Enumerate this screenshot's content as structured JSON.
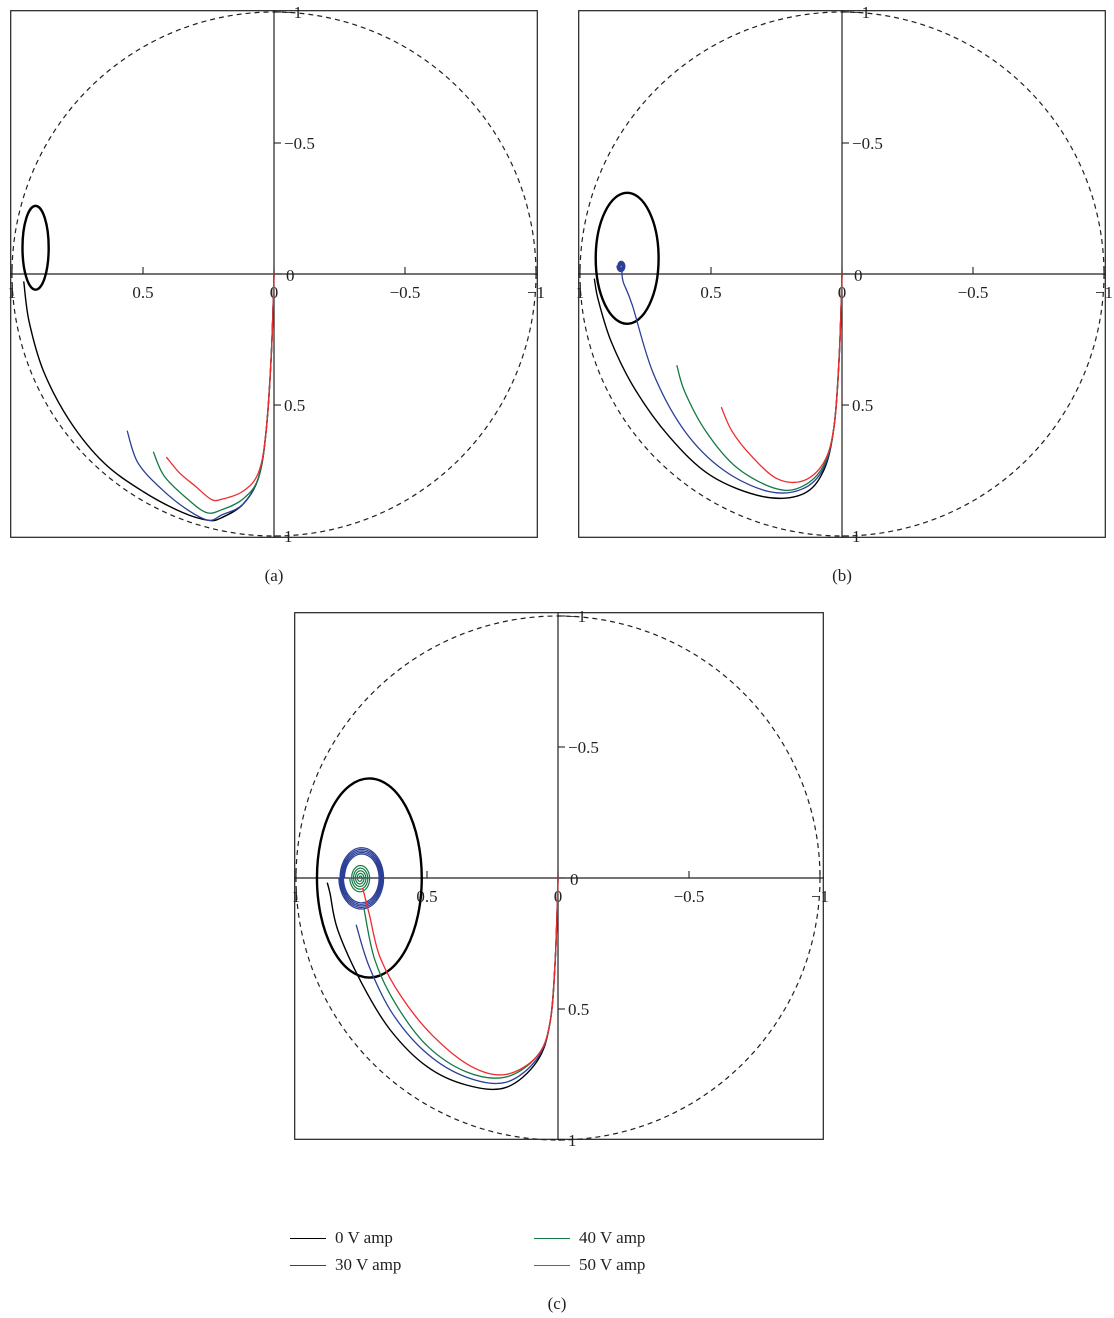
{
  "chart_data": [
    {
      "type": "line",
      "panel_label": "(a)",
      "x_axis": {
        "range": [
          1,
          -1
        ],
        "tick_values": [
          1,
          0.5,
          0,
          -0.5,
          -1
        ],
        "tick_labels": [
          "1",
          "0.5",
          "0",
          "−0.5",
          "−1"
        ]
      },
      "y_axis": {
        "range": [
          -1,
          1
        ],
        "tick_values": [
          -1,
          -0.5,
          0,
          0.5,
          1
        ],
        "tick_labels": [
          "−1",
          "−0.5",
          "0",
          "0.5",
          "1"
        ]
      },
      "unit_circle": {
        "center": [
          0,
          0
        ],
        "radius": 1,
        "style": "dashed"
      },
      "grid": false,
      "series": [
        {
          "name": "0 V amp",
          "color": "#000000",
          "width": 1.4,
          "points": [
            [
              0,
              0
            ],
            [
              0.01,
              0.3
            ],
            [
              0.03,
              0.6
            ],
            [
              0.06,
              0.78
            ],
            [
              0.12,
              0.88
            ],
            [
              0.2,
              0.93
            ],
            [
              0.25,
              0.94
            ],
            [
              0.35,
              0.91
            ],
            [
              0.5,
              0.83
            ],
            [
              0.65,
              0.72
            ],
            [
              0.78,
              0.56
            ],
            [
              0.88,
              0.37
            ],
            [
              0.935,
              0.18
            ],
            [
              0.955,
              0.03
            ]
          ]
        },
        {
          "name": "0 V amp limit cycle",
          "color": "#000000",
          "width": 2.4,
          "ellipse": {
            "cx": 0.91,
            "cy": -0.1,
            "rx": 0.05,
            "ry": 0.16
          }
        },
        {
          "name": "30 V amp",
          "color": "#2b3f96",
          "width": 1.3,
          "points": [
            [
              0,
              0
            ],
            [
              0.01,
              0.3
            ],
            [
              0.03,
              0.6
            ],
            [
              0.06,
              0.78
            ],
            [
              0.12,
              0.88
            ],
            [
              0.2,
              0.92
            ],
            [
              0.25,
              0.94
            ],
            [
              0.33,
              0.9
            ],
            [
              0.43,
              0.82
            ],
            [
              0.52,
              0.72
            ],
            [
              0.56,
              0.6
            ]
          ]
        },
        {
          "name": "40 V amp",
          "color": "#157a46",
          "width": 1.3,
          "points": [
            [
              0,
              0
            ],
            [
              0.01,
              0.3
            ],
            [
              0.03,
              0.6
            ],
            [
              0.06,
              0.78
            ],
            [
              0.12,
              0.86
            ],
            [
              0.2,
              0.9
            ],
            [
              0.26,
              0.91
            ],
            [
              0.34,
              0.85
            ],
            [
              0.42,
              0.77
            ],
            [
              0.46,
              0.68
            ]
          ]
        },
        {
          "name": "50 V amp",
          "color": "#ef2b2d",
          "width": 1.3,
          "points": [
            [
              0,
              0
            ],
            [
              0.01,
              0.3
            ],
            [
              0.03,
              0.6
            ],
            [
              0.06,
              0.76
            ],
            [
              0.12,
              0.83
            ],
            [
              0.2,
              0.86
            ],
            [
              0.24,
              0.86
            ],
            [
              0.3,
              0.81
            ],
            [
              0.36,
              0.76
            ],
            [
              0.41,
              0.7
            ]
          ]
        }
      ]
    },
    {
      "type": "line",
      "panel_label": "(b)",
      "x_axis": {
        "range": [
          1,
          -1
        ],
        "tick_values": [
          1,
          0.5,
          0,
          -0.5,
          -1
        ],
        "tick_labels": [
          "1",
          "0.5",
          "0",
          "−0.5",
          "−1"
        ]
      },
      "y_axis": {
        "range": [
          -1,
          1
        ],
        "tick_values": [
          -1,
          -0.5,
          0,
          0.5,
          1
        ],
        "tick_labels": [
          "−1",
          "−0.5",
          "0",
          "0.5",
          "1"
        ]
      },
      "unit_circle": {
        "center": [
          0,
          0
        ],
        "radius": 1,
        "style": "dashed"
      },
      "grid": false,
      "series": [
        {
          "name": "0 V amp",
          "color": "#000000",
          "width": 1.4,
          "points": [
            [
              0,
              0
            ],
            [
              0.01,
              0.3
            ],
            [
              0.03,
              0.58
            ],
            [
              0.07,
              0.75
            ],
            [
              0.15,
              0.84
            ],
            [
              0.3,
              0.85
            ],
            [
              0.5,
              0.77
            ],
            [
              0.66,
              0.62
            ],
            [
              0.79,
              0.44
            ],
            [
              0.88,
              0.26
            ],
            [
              0.93,
              0.1
            ],
            [
              0.945,
              0.02
            ]
          ]
        },
        {
          "name": "0 V amp limit cycle",
          "color": "#000000",
          "width": 2.4,
          "ellipse": {
            "cx": 0.82,
            "cy": -0.06,
            "rx": 0.12,
            "ry": 0.25
          }
        },
        {
          "name": "30 V amp",
          "color": "#2b3f96",
          "width": 1.3,
          "points": [
            [
              0,
              0
            ],
            [
              0.01,
              0.3
            ],
            [
              0.03,
              0.58
            ],
            [
              0.07,
              0.74
            ],
            [
              0.15,
              0.82
            ],
            [
              0.28,
              0.83
            ],
            [
              0.45,
              0.75
            ],
            [
              0.6,
              0.6
            ],
            [
              0.72,
              0.38
            ],
            [
              0.8,
              0.12
            ],
            [
              0.835,
              0.03
            ],
            [
              0.84,
              -0.01
            ]
          ]
        },
        {
          "name": "30 V amp spiral",
          "color": "#2b3f96",
          "width": 1.2,
          "spiral": {
            "cx": 0.843,
            "cy": -0.03,
            "r_start": 0.022,
            "r_end": 0.003,
            "turns": 4
          }
        },
        {
          "name": "40 V amp",
          "color": "#157a46",
          "width": 1.3,
          "points": [
            [
              0,
              0
            ],
            [
              0.01,
              0.3
            ],
            [
              0.03,
              0.58
            ],
            [
              0.07,
              0.73
            ],
            [
              0.15,
              0.81
            ],
            [
              0.25,
              0.82
            ],
            [
              0.4,
              0.74
            ],
            [
              0.52,
              0.6
            ],
            [
              0.6,
              0.45
            ],
            [
              0.63,
              0.35
            ]
          ]
        },
        {
          "name": "50 V amp",
          "color": "#ef2b2d",
          "width": 1.3,
          "points": [
            [
              0,
              0
            ],
            [
              0.01,
              0.3
            ],
            [
              0.03,
              0.58
            ],
            [
              0.07,
              0.72
            ],
            [
              0.15,
              0.79
            ],
            [
              0.25,
              0.78
            ],
            [
              0.35,
              0.69
            ],
            [
              0.42,
              0.6
            ],
            [
              0.46,
              0.51
            ]
          ]
        }
      ]
    },
    {
      "type": "line",
      "panel_label": "",
      "x_axis": {
        "range": [
          1,
          -1
        ],
        "tick_values": [
          1,
          0.5,
          0,
          -0.5,
          -1
        ],
        "tick_labels": [
          "1",
          "0.5",
          "0",
          "−0.5",
          "−1"
        ]
      },
      "y_axis": {
        "range": [
          -1,
          1
        ],
        "tick_values": [
          -1,
          -0.5,
          0,
          0.5,
          1
        ],
        "tick_labels": [
          "−1",
          "−0.5",
          "0",
          "0.5",
          "1"
        ]
      },
      "unit_circle": {
        "center": [
          0,
          0
        ],
        "radius": 1,
        "style": "dashed"
      },
      "grid": false,
      "series": [
        {
          "name": "0 V amp",
          "color": "#000000",
          "width": 1.4,
          "points": [
            [
              0,
              0
            ],
            [
              0.01,
              0.3
            ],
            [
              0.03,
              0.55
            ],
            [
              0.08,
              0.7
            ],
            [
              0.2,
              0.8
            ],
            [
              0.35,
              0.79
            ],
            [
              0.5,
              0.72
            ],
            [
              0.64,
              0.58
            ],
            [
              0.75,
              0.4
            ],
            [
              0.84,
              0.2
            ],
            [
              0.87,
              0.06
            ],
            [
              0.88,
              0.02
            ]
          ]
        },
        {
          "name": "0 V amp limit cycle",
          "color": "#000000",
          "width": 2.4,
          "ellipse": {
            "cx": 0.72,
            "cy": 0.0,
            "rx": 0.2,
            "ry": 0.38
          }
        },
        {
          "name": "30 V amp",
          "color": "#2b3f96",
          "width": 1.3,
          "points": [
            [
              0,
              0
            ],
            [
              0.01,
              0.3
            ],
            [
              0.03,
              0.55
            ],
            [
              0.08,
              0.69
            ],
            [
              0.2,
              0.78
            ],
            [
              0.35,
              0.76
            ],
            [
              0.5,
              0.67
            ],
            [
              0.63,
              0.52
            ],
            [
              0.72,
              0.34
            ],
            [
              0.77,
              0.18
            ]
          ]
        },
        {
          "name": "30 V amp spiral",
          "color": "#2b3f96",
          "width": 1.2,
          "spiral": {
            "cx": 0.75,
            "cy": 0.0,
            "r_start": 0.12,
            "r_end": 0.09,
            "turns": 5
          }
        },
        {
          "name": "40 V amp",
          "color": "#157a46",
          "width": 1.3,
          "points": [
            [
              0,
              0
            ],
            [
              0.01,
              0.3
            ],
            [
              0.03,
              0.55
            ],
            [
              0.08,
              0.68
            ],
            [
              0.2,
              0.76
            ],
            [
              0.35,
              0.74
            ],
            [
              0.5,
              0.64
            ],
            [
              0.62,
              0.48
            ],
            [
              0.7,
              0.31
            ],
            [
              0.74,
              0.12
            ]
          ]
        },
        {
          "name": "40 V amp spiral",
          "color": "#157a46",
          "width": 1.2,
          "spiral": {
            "cx": 0.755,
            "cy": 0.0,
            "r_start": 0.055,
            "r_end": 0.005,
            "turns": 5
          }
        },
        {
          "name": "50 V amp",
          "color": "#ef2b2d",
          "width": 1.3,
          "points": [
            [
              0,
              0
            ],
            [
              0.01,
              0.3
            ],
            [
              0.03,
              0.55
            ],
            [
              0.08,
              0.68
            ],
            [
              0.2,
              0.75
            ],
            [
              0.33,
              0.72
            ],
            [
              0.48,
              0.6
            ],
            [
              0.6,
              0.45
            ],
            [
              0.68,
              0.3
            ],
            [
              0.72,
              0.14
            ],
            [
              0.74,
              0.06
            ],
            [
              0.745,
              0.04
            ]
          ]
        }
      ]
    }
  ],
  "legend": {
    "entries": [
      {
        "label": "0 V amp",
        "color": "#000000"
      },
      {
        "label": "30 V amp",
        "color": "#2b3f96"
      },
      {
        "label": "40 V amp",
        "color": "#157a46"
      },
      {
        "label": "50 V amp",
        "color": "#ef2b2d"
      }
    ]
  },
  "figure_caption": "(c)"
}
